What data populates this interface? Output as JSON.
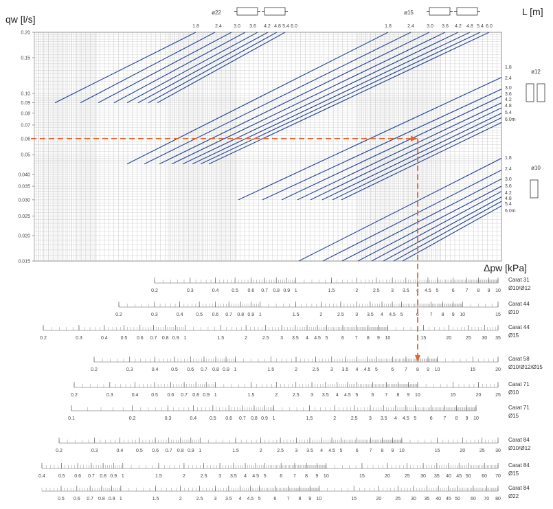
{
  "chart_data": {
    "type": "line",
    "ylabel": "qw [l/s]",
    "xlabel": "Δpw [kPa]",
    "length_label": "L [m]",
    "y_scale": "log",
    "ylim": [
      0.015,
      0.2
    ],
    "y_ticks": [
      "0.20",
      "0.15",
      "0.10",
      "0.09",
      "0.08",
      "0.07",
      "0.06",
      "0.05",
      "0.040",
      "0.035",
      "0.030",
      "0.025",
      "0.020",
      "0.015"
    ],
    "grid": true,
    "diameter_groups": [
      {
        "name": "ø22",
        "lengths": [
          "1.8",
          "2.4",
          "3.0",
          "3.6",
          "4.2",
          "4.8",
          "5.4",
          "6.0"
        ]
      },
      {
        "name": "ø15",
        "lengths": [
          "1.8",
          "2.4",
          "3.0",
          "3.6",
          "4.2",
          "4.8",
          "5.4",
          "6.0"
        ]
      },
      {
        "name": "ø12",
        "lengths": [
          "1.8",
          "2.4",
          "3.0",
          "3.6",
          "4.2",
          "4.8",
          "5.4",
          "6.0m"
        ]
      },
      {
        "name": "ø10",
        "lengths": [
          "1.8",
          "2.4",
          "3.0",
          "3.6",
          "4.2",
          "4.8",
          "5.4",
          "6.0m"
        ]
      }
    ],
    "example_path": {
      "qw": 0.06,
      "dp_kPa": 8,
      "scale": "Carat 58"
    },
    "scales": [
      {
        "name": "Carat 31",
        "sub": "Ø10/Ø12",
        "min": 0.2,
        "max": 10,
        "labels": [
          "0.2",
          "0.3",
          "0.4",
          "0.5",
          "0.6",
          "0.7",
          "0.8",
          "0.9",
          "1",
          "1.5",
          "2",
          "2.5",
          "3",
          "3.5",
          "4",
          "4.5",
          "5",
          "6",
          "7",
          "8",
          "9",
          "10"
        ]
      },
      {
        "name": "Carat 44",
        "sub": "Ø10",
        "min": 0.2,
        "max": 15,
        "labels": [
          "0.2",
          "0.3",
          "0.4",
          "0.5",
          "0.6",
          "0.7",
          "0.8",
          "0.9",
          "1",
          "1.5",
          "2",
          "2.5",
          "3",
          "3.5",
          "4",
          "4.5",
          "5",
          "6",
          "7",
          "8",
          "9",
          "10",
          "15"
        ]
      },
      {
        "name": "Carat 44",
        "sub": "Ø15",
        "min": 0.2,
        "max": 35,
        "labels": [
          "0.2",
          "0.3",
          "0.4",
          "0.5",
          "0.6",
          "0.7",
          "0.8",
          "0.9",
          "1",
          "1.5",
          "2",
          "2.5",
          "3",
          "3.5",
          "4",
          "4.5",
          "5",
          "6",
          "7",
          "8",
          "9",
          "10",
          "15",
          "20",
          "25",
          "30",
          "35"
        ]
      },
      {
        "name": "Carat 58",
        "sub": "Ø10/Ø12/Ø15",
        "min": 0.2,
        "max": 20,
        "labels": [
          "0.2",
          "0.3",
          "0.4",
          "0.5",
          "0.6",
          "0.7",
          "0.8",
          "0.9",
          "1",
          "1.5",
          "2",
          "2.5",
          "3",
          "3.5",
          "4",
          "4.5",
          "5",
          "6",
          "7",
          "8",
          "9",
          "10",
          "15",
          "20"
        ]
      },
      {
        "name": "Carat 71",
        "sub": "Ø10",
        "min": 0.2,
        "max": 25,
        "labels": [
          "0.2",
          "0.3",
          "0.4",
          "0.5",
          "0.6",
          "0.7",
          "0.8",
          "0.9",
          "1",
          "1.5",
          "2",
          "2.5",
          "3",
          "3.5",
          "4",
          "4.5",
          "5",
          "6",
          "7",
          "8",
          "9",
          "10",
          "15",
          "20",
          "25"
        ]
      },
      {
        "name": "Carat 71",
        "sub": "Ø15",
        "min": 0.1,
        "max": 10,
        "labels": [
          "0.1",
          "0.2",
          "0.3",
          "0.4",
          "0.5",
          "0.6",
          "0.7",
          "0.8",
          "0.9",
          "1",
          "1.5",
          "2",
          "2.5",
          "3",
          "3.5",
          "4",
          "4.5",
          "5",
          "6",
          "7",
          "8",
          "9",
          "10"
        ]
      },
      {
        "name": "Carat 84",
        "sub": "Ø10/Ø12",
        "min": 0.2,
        "max": 30,
        "labels": [
          "0.2",
          "0.3",
          "0.4",
          "0.5",
          "0.6",
          "0.7",
          "0.8",
          "0.9",
          "1",
          "1.5",
          "2",
          "2.5",
          "3",
          "3.5",
          "4",
          "4.5",
          "5",
          "6",
          "7",
          "8",
          "9",
          "10",
          "15",
          "20",
          "25",
          "30"
        ]
      },
      {
        "name": "Carat 84",
        "sub": "Ø15",
        "min": 0.4,
        "max": 70,
        "labels": [
          "0.4",
          "0.5",
          "0.6",
          "0.7",
          "0.8",
          "0.9",
          "1",
          "1.5",
          "2",
          "2.5",
          "3",
          "3.5",
          "4",
          "4.5",
          "5",
          "6",
          "7",
          "8",
          "9",
          "10",
          "15",
          "20",
          "25",
          "30",
          "35",
          "40",
          "45",
          "50",
          "60",
          "70"
        ]
      },
      {
        "name": "Carat 84",
        "sub": "Ø22",
        "min": 0.4,
        "max": 80,
        "labels": [
          "0.5",
          "0.6",
          "0.7",
          "0.8",
          "0.9",
          "1",
          "1.5",
          "2",
          "2.5",
          "3",
          "3.5",
          "4",
          "4.5",
          "5",
          "6",
          "7",
          "8",
          "9",
          "10",
          "15",
          "20",
          "25",
          "30",
          "35",
          "40",
          "45",
          "50",
          "60",
          "70",
          "80"
        ]
      }
    ]
  },
  "colors": {
    "curve": "#2a4a9a",
    "example": "#e8642c",
    "grid": "#bdbdbd",
    "grid_dense": "#d0d0d0",
    "axis": "#555555"
  }
}
